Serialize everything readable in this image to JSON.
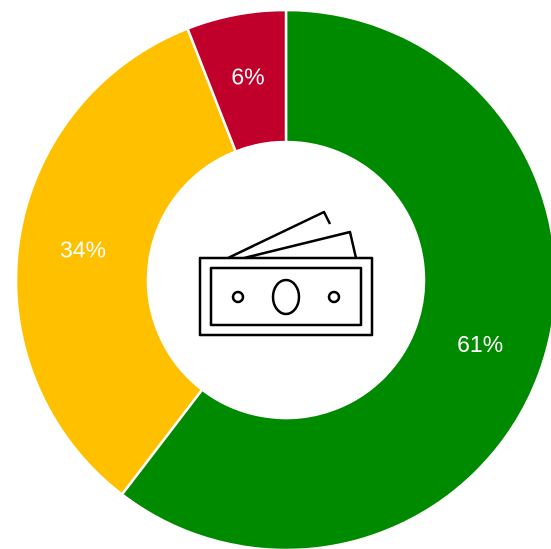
{
  "chart_data": {
    "type": "donut",
    "values": [
      61,
      34,
      6
    ],
    "value_labels": [
      "61%",
      "34%",
      "6%"
    ],
    "colors": [
      "#008a00",
      "#ffc000",
      "#c0002a"
    ]
  }
}
